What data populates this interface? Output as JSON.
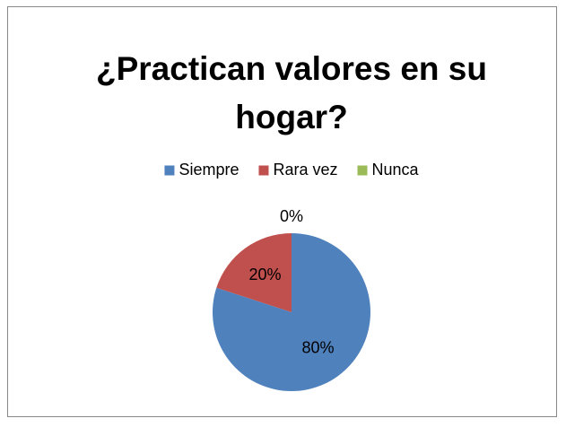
{
  "chart_data": {
    "type": "pie",
    "title": "¿Practican valores en su hogar?",
    "categories": [
      "Siempre",
      "Rara vez",
      "Nunca"
    ],
    "values": [
      80,
      20,
      0
    ],
    "value_labels": [
      "80%",
      "20%",
      "0%"
    ],
    "colors": [
      "#4f81bd",
      "#c0504d",
      "#9bbb59"
    ],
    "legend": "top"
  }
}
